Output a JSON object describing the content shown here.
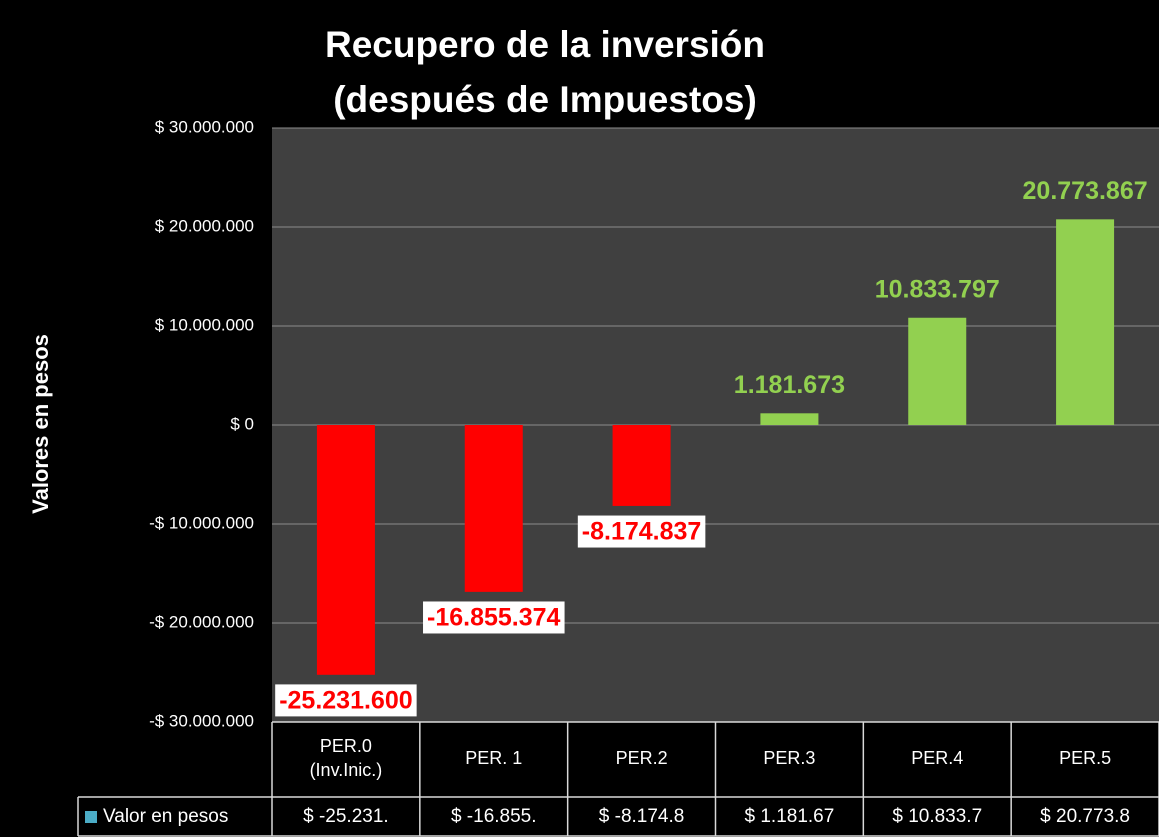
{
  "chart_data": {
    "type": "bar",
    "title_lines": [
      "Recupero de la inversión",
      "(después de Impuestos)"
    ],
    "y_label": "Valores en pesos",
    "categories": [
      "PER.0\n(Inv.Inic.)",
      "PER. 1",
      "PER.2",
      "PER.3",
      "PER.4",
      "PER.5"
    ],
    "series": [
      {
        "name": "Valor en pesos",
        "values": [
          -25231600,
          -16855374,
          -8174837,
          1181673,
          10833797,
          20773867
        ],
        "value_labels": [
          "-25.231.600",
          "-16.855.374",
          "-8.174.837",
          "1.181.673",
          "10.833.797",
          "20.773.867"
        ]
      }
    ],
    "negative_color": "#ff0000",
    "positive_color": "#92d050",
    "legend_key_color": "#4bacc6",
    "ylim": [
      -30000000,
      30000000
    ],
    "yticks": [
      {
        "value": -30000000,
        "label": "-$ 30.000.000"
      },
      {
        "value": -20000000,
        "label": "-$ 20.000.000"
      },
      {
        "value": -10000000,
        "label": "-$ 10.000.000"
      },
      {
        "value": 0,
        "label": "$ 0"
      },
      {
        "value": 10000000,
        "label": "$ 10.000.000"
      },
      {
        "value": 20000000,
        "label": "$ 20.000.000"
      },
      {
        "value": 30000000,
        "label": "$ 30.000.000"
      }
    ],
    "grid": true,
    "data_table": {
      "cells": [
        "$ -25.231.",
        "$ -16.855.",
        "$ -8.174.8",
        "$ 1.181.67",
        "$ 10.833.7",
        "$ 20.773.8"
      ]
    }
  }
}
